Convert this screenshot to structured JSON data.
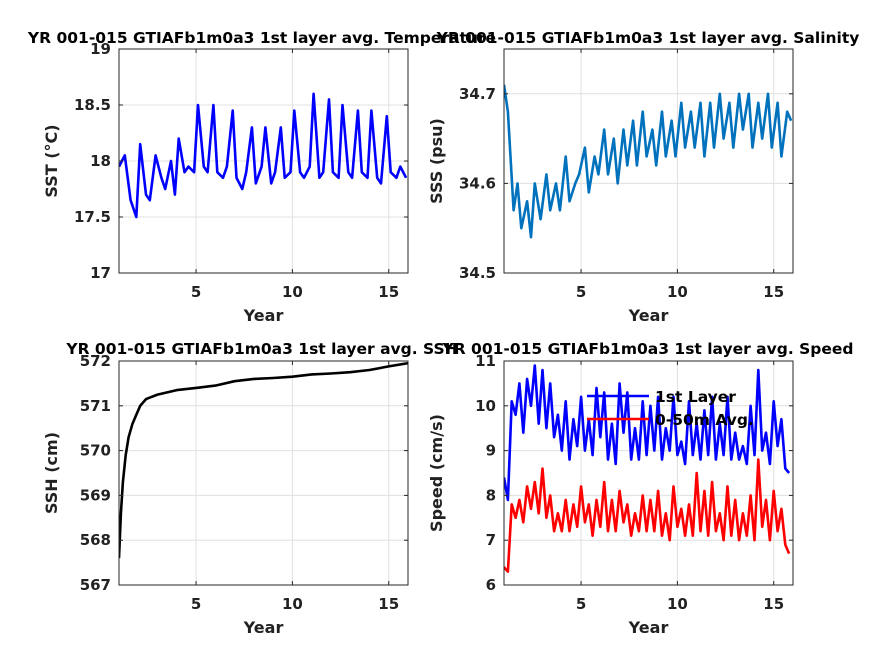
{
  "figure": {
    "panels": [
      {
        "title": "YR 001-015 GTIAFb1m0a3 1st layer avg. Temperature",
        "xlabel": "Year",
        "ylabel": "SST (°C)"
      },
      {
        "title": "YR 001-015 GTIAFb1m0a3 1st layer avg. Salinity",
        "xlabel": "Year",
        "ylabel": "SSS (psu)"
      },
      {
        "title": "YR 001-015 GTIAFb1m0a3 1st layer avg. SSH",
        "xlabel": "Year",
        "ylabel": "SSH (cm)"
      },
      {
        "title": "YR 001-015 GTIAFb1m0a3 1st layer avg. Speed",
        "xlabel": "Year",
        "ylabel": "Speed (cm/s)",
        "legend": [
          "1st Layer",
          "0-50m Avg."
        ]
      }
    ]
  },
  "chart_data": [
    {
      "type": "line",
      "title": "YR 001-015 GTIAFb1m0a3 1st layer avg. Temperature",
      "xlabel": "Year",
      "ylabel": "SST (°C)",
      "xlim": [
        1,
        16
      ],
      "ylim": [
        17,
        19
      ],
      "xticks": [
        5,
        10,
        15
      ],
      "yticks": [
        17,
        17.5,
        18,
        18.5,
        19
      ],
      "grid": true,
      "series": [
        {
          "color": "#0000ff",
          "x": [
            1.0,
            1.3,
            1.6,
            1.9,
            2.1,
            2.4,
            2.6,
            2.9,
            3.2,
            3.4,
            3.7,
            3.9,
            4.1,
            4.4,
            4.6,
            4.9,
            5.1,
            5.4,
            5.6,
            5.9,
            6.1,
            6.4,
            6.6,
            6.9,
            7.1,
            7.4,
            7.6,
            7.9,
            8.1,
            8.4,
            8.6,
            8.9,
            9.1,
            9.4,
            9.6,
            9.9,
            10.1,
            10.4,
            10.6,
            10.9,
            11.1,
            11.4,
            11.6,
            11.9,
            12.1,
            12.4,
            12.6,
            12.9,
            13.1,
            13.4,
            13.6,
            13.9,
            14.1,
            14.4,
            14.6,
            14.9,
            15.1,
            15.4,
            15.6,
            15.9
          ],
          "y": [
            17.95,
            18.05,
            17.65,
            17.5,
            18.15,
            17.7,
            17.65,
            18.05,
            17.85,
            17.75,
            18.0,
            17.7,
            18.2,
            17.9,
            17.95,
            17.9,
            18.5,
            17.95,
            17.9,
            18.5,
            17.9,
            17.85,
            17.95,
            18.45,
            17.85,
            17.75,
            17.9,
            18.3,
            17.8,
            17.95,
            18.3,
            17.8,
            17.9,
            18.3,
            17.85,
            17.9,
            18.45,
            17.9,
            17.85,
            17.95,
            18.6,
            17.85,
            17.9,
            18.55,
            17.9,
            17.85,
            18.5,
            17.9,
            17.85,
            18.45,
            17.9,
            17.85,
            18.45,
            17.85,
            17.8,
            18.4,
            17.9,
            17.85,
            17.95,
            17.85
          ]
        }
      ]
    },
    {
      "type": "line",
      "title": "YR 001-015 GTIAFb1m0a3 1st layer avg. Salinity",
      "xlabel": "Year",
      "ylabel": "SSS (psu)",
      "xlim": [
        1,
        16
      ],
      "ylim": [
        34.5,
        34.75
      ],
      "xticks": [
        5,
        10,
        15
      ],
      "yticks": [
        34.5,
        34.6,
        34.7
      ],
      "grid": true,
      "series": [
        {
          "color": "#0072bd",
          "x": [
            1.0,
            1.2,
            1.5,
            1.7,
            1.9,
            2.2,
            2.4,
            2.6,
            2.9,
            3.2,
            3.4,
            3.7,
            3.9,
            4.2,
            4.4,
            4.7,
            4.9,
            5.2,
            5.4,
            5.7,
            5.9,
            6.2,
            6.4,
            6.7,
            6.9,
            7.2,
            7.4,
            7.7,
            7.9,
            8.2,
            8.4,
            8.7,
            8.9,
            9.2,
            9.4,
            9.7,
            9.9,
            10.2,
            10.4,
            10.7,
            10.9,
            11.2,
            11.4,
            11.7,
            11.9,
            12.2,
            12.4,
            12.7,
            12.9,
            13.2,
            13.4,
            13.7,
            13.9,
            14.2,
            14.4,
            14.7,
            14.9,
            15.2,
            15.4,
            15.7,
            15.9
          ],
          "y": [
            34.71,
            34.68,
            34.57,
            34.6,
            34.55,
            34.58,
            34.54,
            34.6,
            34.56,
            34.61,
            34.57,
            34.6,
            34.57,
            34.63,
            34.58,
            34.6,
            34.61,
            34.64,
            34.59,
            34.63,
            34.61,
            34.66,
            34.61,
            34.65,
            34.6,
            34.66,
            34.62,
            34.67,
            34.62,
            34.68,
            34.63,
            34.66,
            34.62,
            34.68,
            34.63,
            34.67,
            34.63,
            34.69,
            34.64,
            34.68,
            34.64,
            34.69,
            34.63,
            34.69,
            34.64,
            34.7,
            34.65,
            34.69,
            34.64,
            34.7,
            34.66,
            34.7,
            34.64,
            34.69,
            34.65,
            34.7,
            34.64,
            34.69,
            34.63,
            34.68,
            34.67
          ]
        }
      ]
    },
    {
      "type": "line",
      "title": "YR 001-015 GTIAFb1m0a3 1st layer avg. SSH",
      "xlabel": "Year",
      "ylabel": "SSH (cm)",
      "xlim": [
        1,
        16
      ],
      "ylim": [
        567,
        572
      ],
      "xticks": [
        5,
        10,
        15
      ],
      "yticks": [
        567,
        568,
        569,
        570,
        571,
        572
      ],
      "grid": true,
      "series": [
        {
          "color": "#000000",
          "x": [
            1.0,
            1.1,
            1.2,
            1.35,
            1.5,
            1.7,
            1.9,
            2.1,
            2.4,
            2.7,
            3.0,
            3.5,
            4.0,
            5.0,
            6.0,
            7.0,
            8.0,
            9.0,
            10.0,
            11.0,
            12.0,
            13.0,
            14.0,
            15.0,
            16.0
          ],
          "y": [
            567.6,
            568.6,
            569.3,
            569.9,
            570.3,
            570.6,
            570.8,
            571.0,
            571.15,
            571.2,
            571.25,
            571.3,
            571.35,
            571.4,
            571.45,
            571.55,
            571.6,
            571.62,
            571.65,
            571.7,
            571.72,
            571.75,
            571.8,
            571.88,
            571.95
          ]
        }
      ]
    },
    {
      "type": "line",
      "title": "YR 001-015 GTIAFb1m0a3 1st layer avg. Speed",
      "xlabel": "Year",
      "ylabel": "Speed (cm/s)",
      "xlim": [
        1,
        16
      ],
      "ylim": [
        6,
        11
      ],
      "xticks": [
        5,
        10,
        15
      ],
      "yticks": [
        6,
        7,
        8,
        9,
        10,
        11
      ],
      "grid": true,
      "legend_location": "top-center",
      "series": [
        {
          "name": "1st Layer",
          "color": "#0000ff",
          "x": [
            1.0,
            1.2,
            1.4,
            1.6,
            1.8,
            2.0,
            2.2,
            2.4,
            2.6,
            2.8,
            3.0,
            3.2,
            3.4,
            3.6,
            3.8,
            4.0,
            4.2,
            4.4,
            4.6,
            4.8,
            5.0,
            5.2,
            5.4,
            5.6,
            5.8,
            6.0,
            6.2,
            6.4,
            6.6,
            6.8,
            7.0,
            7.2,
            7.4,
            7.6,
            7.8,
            8.0,
            8.2,
            8.4,
            8.6,
            8.8,
            9.0,
            9.2,
            9.4,
            9.6,
            9.8,
            10.0,
            10.2,
            10.4,
            10.6,
            10.8,
            11.0,
            11.2,
            11.4,
            11.6,
            11.8,
            12.0,
            12.2,
            12.4,
            12.6,
            12.8,
            13.0,
            13.2,
            13.4,
            13.6,
            13.8,
            14.0,
            14.2,
            14.4,
            14.6,
            14.8,
            15.0,
            15.2,
            15.4,
            15.6,
            15.8
          ],
          "y": [
            8.4,
            7.9,
            10.1,
            9.8,
            10.5,
            9.4,
            10.6,
            10.0,
            10.9,
            9.6,
            10.8,
            9.5,
            10.5,
            9.3,
            9.8,
            9.0,
            10.1,
            8.8,
            9.7,
            9.1,
            10.2,
            9.0,
            9.7,
            8.9,
            10.4,
            9.3,
            10.3,
            8.8,
            9.6,
            8.7,
            10.5,
            9.4,
            10.3,
            8.8,
            9.5,
            8.8,
            10.1,
            8.9,
            10.0,
            9.0,
            10.2,
            8.8,
            9.5,
            9.0,
            10.2,
            8.9,
            9.2,
            8.7,
            10.1,
            8.9,
            9.6,
            8.8,
            9.9,
            8.9,
            10.2,
            8.8,
            9.6,
            8.9,
            10.2,
            8.8,
            9.4,
            8.8,
            9.1,
            8.7,
            10.0,
            8.9,
            10.8,
            9.0,
            9.4,
            8.7,
            10.1,
            9.1,
            9.7,
            8.6,
            8.5
          ]
        },
        {
          "name": "0-50m Avg.",
          "color": "#ff0000",
          "x": [
            1.0,
            1.2,
            1.4,
            1.6,
            1.8,
            2.0,
            2.2,
            2.4,
            2.6,
            2.8,
            3.0,
            3.2,
            3.4,
            3.6,
            3.8,
            4.0,
            4.2,
            4.4,
            4.6,
            4.8,
            5.0,
            5.2,
            5.4,
            5.6,
            5.8,
            6.0,
            6.2,
            6.4,
            6.6,
            6.8,
            7.0,
            7.2,
            7.4,
            7.6,
            7.8,
            8.0,
            8.2,
            8.4,
            8.6,
            8.8,
            9.0,
            9.2,
            9.4,
            9.6,
            9.8,
            10.0,
            10.2,
            10.4,
            10.6,
            10.8,
            11.0,
            11.2,
            11.4,
            11.6,
            11.8,
            12.0,
            12.2,
            12.4,
            12.6,
            12.8,
            13.0,
            13.2,
            13.4,
            13.6,
            13.8,
            14.0,
            14.2,
            14.4,
            14.6,
            14.8,
            15.0,
            15.2,
            15.4,
            15.6,
            15.8
          ],
          "y": [
            6.4,
            6.3,
            7.8,
            7.5,
            7.9,
            7.4,
            8.2,
            7.7,
            8.3,
            7.6,
            8.6,
            7.5,
            8.0,
            7.2,
            7.6,
            7.2,
            7.9,
            7.2,
            7.8,
            7.3,
            8.2,
            7.4,
            7.8,
            7.1,
            7.9,
            7.3,
            8.3,
            7.2,
            7.9,
            7.2,
            8.1,
            7.4,
            7.8,
            7.1,
            7.6,
            7.2,
            8.0,
            7.2,
            7.9,
            7.2,
            8.1,
            7.1,
            7.6,
            7.0,
            8.2,
            7.3,
            7.7,
            7.1,
            7.8,
            7.1,
            8.5,
            7.2,
            8.1,
            7.1,
            8.3,
            7.2,
            7.6,
            7.0,
            8.2,
            7.1,
            7.9,
            7.0,
            7.6,
            7.1,
            8.0,
            7.0,
            8.8,
            7.3,
            7.9,
            7.0,
            8.1,
            7.2,
            7.7,
            6.9,
            6.7
          ]
        }
      ]
    }
  ]
}
